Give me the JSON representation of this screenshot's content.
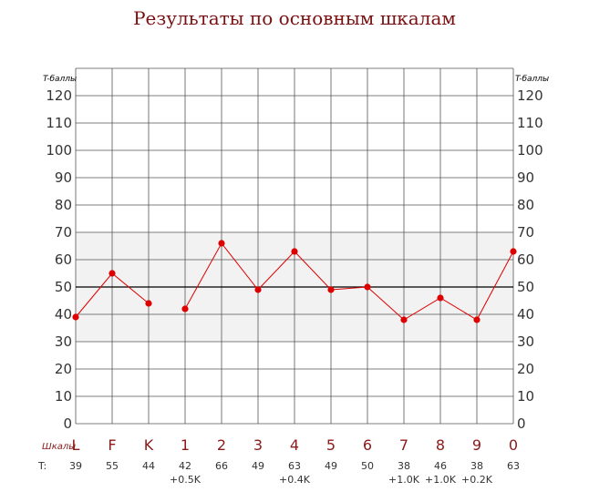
{
  "chart_data": {
    "type": "line",
    "title": "Результаты по основным шкалам",
    "ylabel_left": "T-баллы",
    "ylabel_right": "T-баллы",
    "row_label_scales": "Шкалы",
    "row_label_t": "T:",
    "categories": [
      "L",
      "F",
      "K",
      "1",
      "2",
      "3",
      "4",
      "5",
      "6",
      "7",
      "8",
      "9",
      "0"
    ],
    "values": [
      39,
      55,
      44,
      42,
      66,
      49,
      63,
      49,
      50,
      38,
      46,
      38,
      63
    ],
    "t_labels": [
      "39",
      "55",
      "44",
      "42",
      "66",
      "49",
      "63",
      "49",
      "50",
      "38",
      "46",
      "38",
      "63"
    ],
    "k_corrections": [
      "",
      "",
      "",
      "+0.5K",
      "",
      "",
      "+0.4K",
      "",
      "",
      "+1.0K",
      "+1.0K",
      "+0.2K",
      ""
    ],
    "ylim": [
      0,
      130
    ],
    "yticks": [
      0,
      10,
      20,
      30,
      40,
      50,
      60,
      70,
      80,
      90,
      100,
      110,
      120
    ],
    "normal_band": [
      30,
      70
    ],
    "reference_line": 50,
    "line_segments": [
      [
        0,
        1,
        2
      ],
      [
        3,
        4,
        5,
        6,
        7,
        8,
        9,
        10,
        11,
        12
      ]
    ],
    "grid": true,
    "line_color": "#dd0000",
    "band_color": "#f2f2f2",
    "category_color": "#8b1a1a"
  }
}
